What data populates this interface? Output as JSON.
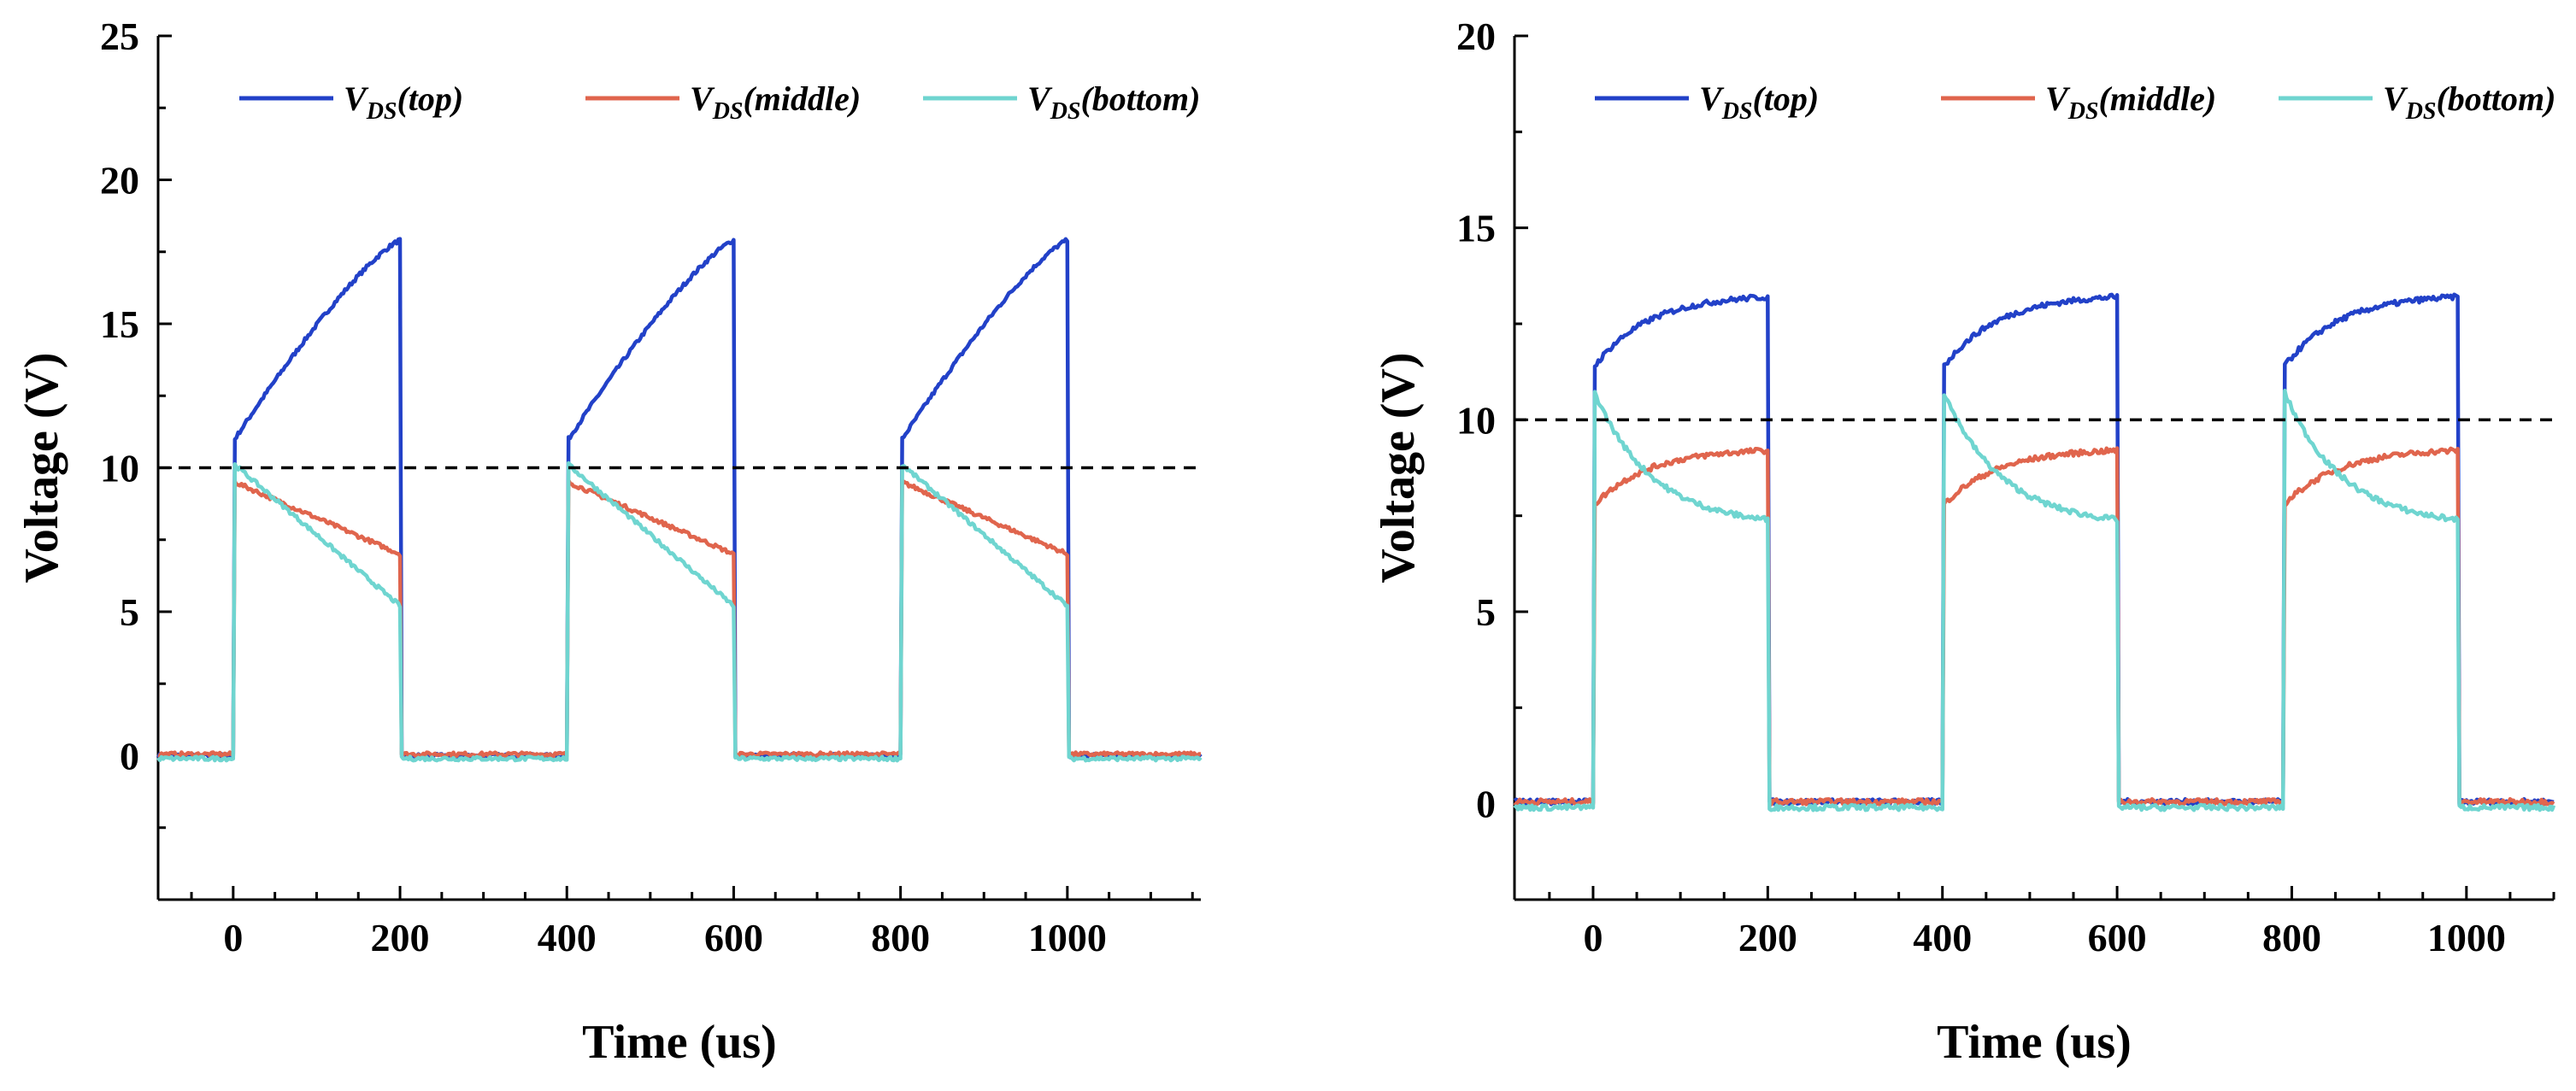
{
  "chart_data": [
    {
      "type": "line",
      "xlabel": "Time (us)",
      "ylabel": "Voltage (V)",
      "xlim": [
        -90,
        1160
      ],
      "ylim": [
        -5,
        25
      ],
      "xticks": [
        0,
        200,
        400,
        600,
        800,
        1000
      ],
      "yticks": [
        0,
        5,
        10,
        15,
        20,
        25
      ],
      "reference_line": {
        "y": 10,
        "style": "dashed"
      },
      "legend_position": "top",
      "period": 400,
      "pulse_width": 200,
      "pulse_starts": [
        0,
        400,
        800
      ],
      "series": [
        {
          "name": "V_DS(top)",
          "label_main": "V",
          "label_sub": "DS",
          "label_rest": "(top)",
          "color": "#2241c8",
          "on_start": 11.0,
          "on_end": 17.9,
          "curve": "concave_rise",
          "off_level": 0.0
        },
        {
          "name": "V_DS(middle)",
          "label_main": "V",
          "label_sub": "DS",
          "label_rest": "(middle)",
          "color": "#e0654d",
          "on_start": 9.5,
          "on_end": 7.0,
          "curve": "linear",
          "off_level": 0.05
        },
        {
          "name": "V_DS(bottom)",
          "label_main": "V",
          "label_sub": "DS",
          "label_rest": "(bottom)",
          "color": "#6fd5d0",
          "on_start": 10.1,
          "on_end": 5.2,
          "curve": "linear",
          "off_level": -0.1
        }
      ]
    },
    {
      "type": "line",
      "xlabel": "Time (us)",
      "ylabel": "Voltage (V)",
      "xlim": [
        -90,
        1100
      ],
      "ylim": [
        -2.5,
        20
      ],
      "xticks": [
        0,
        200,
        400,
        600,
        800,
        1000
      ],
      "yticks": [
        0,
        5,
        10,
        15,
        20
      ],
      "reference_line": {
        "y": 10,
        "style": "dashed"
      },
      "legend_position": "top",
      "period": 395,
      "pulse_width": 200,
      "pulse_starts": [
        0,
        400,
        790
      ],
      "series": [
        {
          "name": "V_DS(top)",
          "label_main": "V",
          "label_sub": "DS",
          "label_rest": "(top)",
          "color": "#2241c8",
          "on_start": 11.4,
          "on_end": 13.2,
          "curve": "exp_rise",
          "off_level": 0.05
        },
        {
          "name": "V_DS(middle)",
          "label_main": "V",
          "label_sub": "DS",
          "label_rest": "(middle)",
          "color": "#e0654d",
          "on_start": 7.8,
          "on_end": 9.2,
          "curve": "exp_rise",
          "off_level": 0.05
        },
        {
          "name": "V_DS(bottom)",
          "label_main": "V",
          "label_sub": "DS",
          "label_rest": "(bottom)",
          "color": "#6fd5d0",
          "on_start": 10.7,
          "on_end": 7.4,
          "curve": "exp_decay",
          "off_level": -0.1
        }
      ]
    }
  ]
}
